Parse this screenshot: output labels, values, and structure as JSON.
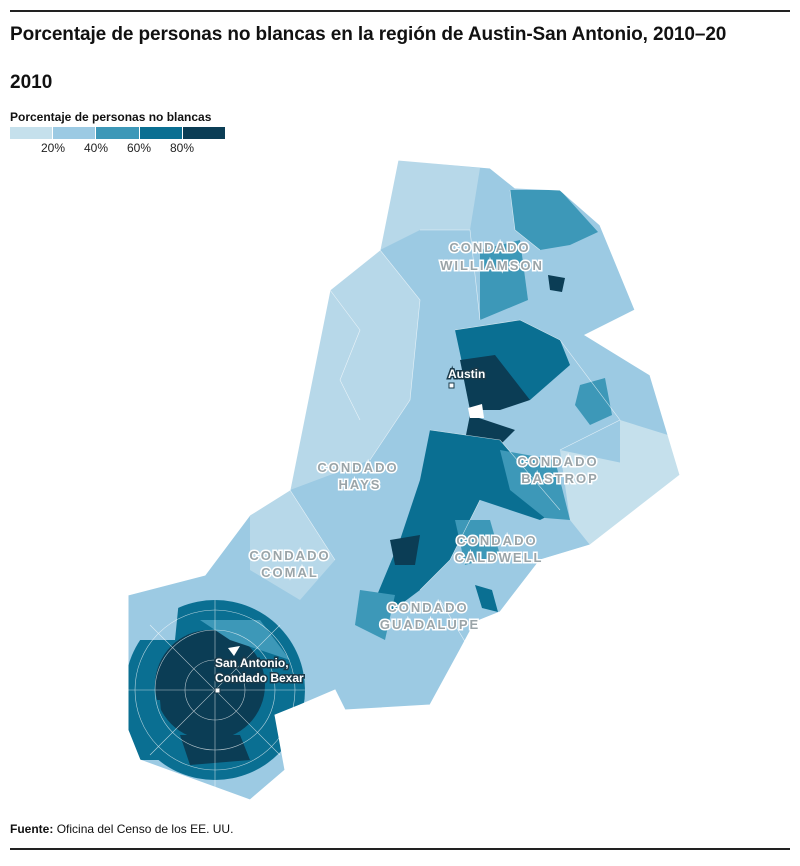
{
  "title": "Porcentaje de personas no blancas en la región de Austin-San Antonio, 2010–20",
  "year": "2010",
  "legend": {
    "title": "Porcentaje de personas no blancas",
    "colors": [
      "#c5e0ec",
      "#9ccae3",
      "#3d98b8",
      "#0a6f92",
      "#0b3d55"
    ],
    "ticks": [
      "20%",
      "40%",
      "60%",
      "80%"
    ]
  },
  "map": {
    "county_labels": [
      {
        "line1": "CONDADO",
        "line2": "WILLIAMSON"
      },
      {
        "line1": "CONDADO",
        "line2": "HAYS"
      },
      {
        "line1": "CONDADO",
        "line2": "BASTROP"
      },
      {
        "line1": "CONDADO",
        "line2": "COMAL"
      },
      {
        "line1": "CONDADO",
        "line2": "CALDWELL"
      },
      {
        "line1": "CONDADO",
        "line2": "GUADALUPE"
      }
    ],
    "cities": [
      {
        "line1": "Austin"
      },
      {
        "line1": "San Antonio,",
        "line2": "Condado Bexar"
      }
    ]
  },
  "source": {
    "label": "Fuente:",
    "text": "Oficina del Censo de los EE. UU."
  }
}
